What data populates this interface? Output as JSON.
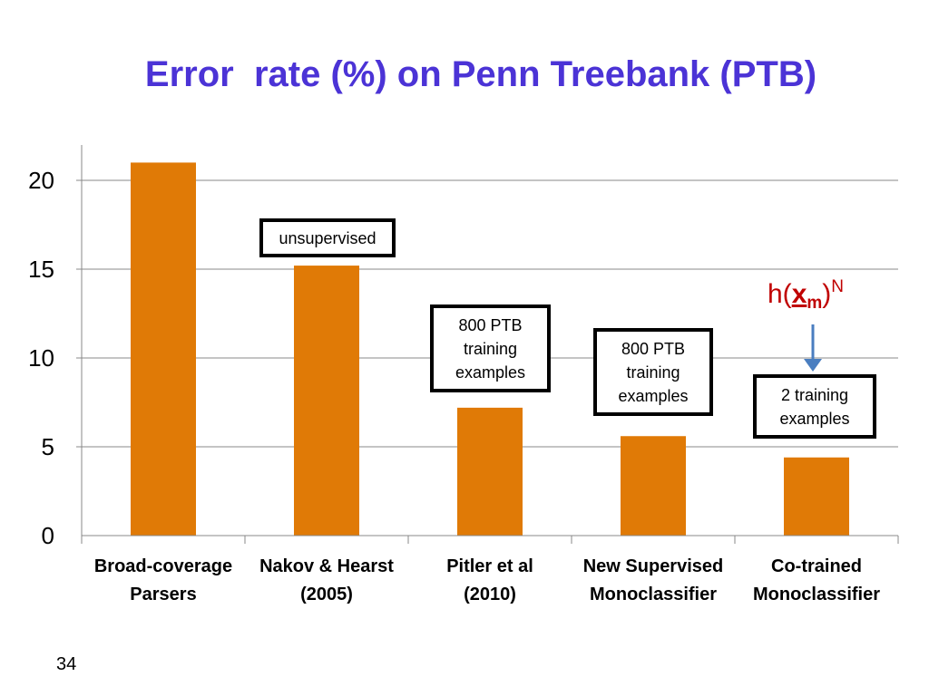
{
  "slide": {
    "title": "Error  rate (%) on Penn Treebank (PTB)",
    "page_number": "34"
  },
  "callouts": {
    "unsupervised": "unsupervised",
    "ptb_pitler": "800  PTB training examples",
    "ptb_new": "800  PTB training examples",
    "two_training": "2 training examples"
  },
  "formula": {
    "prefix": "h(",
    "var": "x",
    "sub": "m",
    "suffix": ")",
    "sup": "N"
  },
  "colors": {
    "title": "#4b33d6",
    "bar": "#e07a06",
    "formula": "#c00000",
    "arrow": "#4a7ec0",
    "grid": "#888888"
  },
  "chart_data": {
    "type": "bar",
    "title": "Error  rate (%) on Penn Treebank (PTB)",
    "categories": [
      "Broad-coverage Parsers",
      "Nakov & Hearst (2005)",
      "Pitler et al (2010)",
      "New Supervised Monoclassifier",
      "Co-trained Monoclassifier"
    ],
    "category_lines": [
      [
        "Broad-coverage",
        "Parsers"
      ],
      [
        "Nakov & Hearst",
        "(2005)"
      ],
      [
        "Pitler et al",
        "(2010)"
      ],
      [
        "New Supervised",
        "Monoclassifier"
      ],
      [
        "Co-trained",
        "Monoclassifier"
      ]
    ],
    "values": [
      21.0,
      15.2,
      7.2,
      5.6,
      4.4
    ],
    "yticks": [
      "0",
      "5",
      "10",
      "15",
      "20"
    ],
    "ylim": [
      0,
      22
    ],
    "grid": true,
    "xlabel": "",
    "ylabel": ""
  }
}
